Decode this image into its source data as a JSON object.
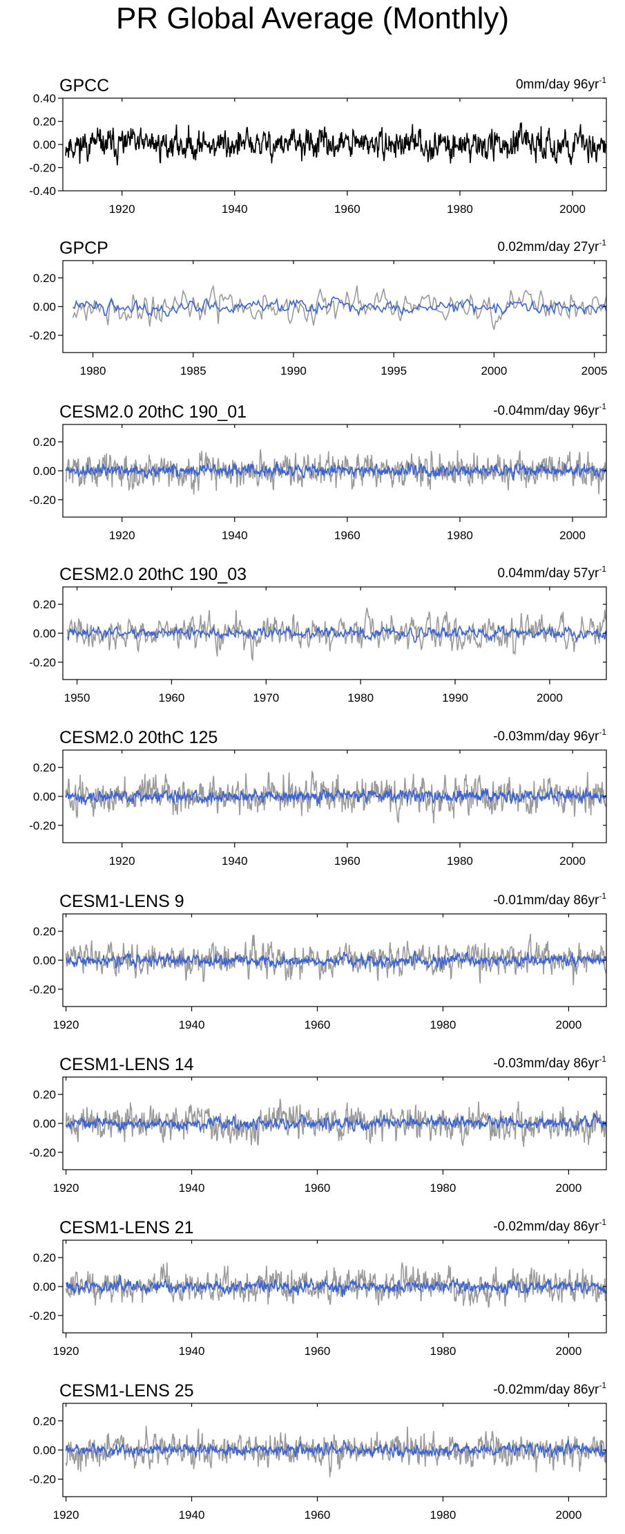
{
  "title": "PR Global Average (Monthly)",
  "colors": {
    "obs_gray": "#9a9a9a",
    "obs_black": "#000000",
    "model_blue": "#3a63d8",
    "axis": "#000000"
  },
  "chart_data": [
    {
      "type": "line",
      "name": "GPCC",
      "trend": "0mm/day 96yr",
      "trend_exp": "-1",
      "xlim": [
        1909.5,
        2006
      ],
      "ylim": [
        -0.4,
        0.4
      ],
      "yticks": [
        -0.4,
        -0.2,
        0.0,
        0.2,
        0.4
      ],
      "ytick_labels": [
        "-0.40",
        "-0.20",
        "0.00",
        "0.20",
        "0.40"
      ],
      "xticks": [
        1920,
        1940,
        1960,
        1980,
        2000
      ],
      "xtick_labels": [
        "1920",
        "1940",
        "1960",
        "1980",
        "2000"
      ],
      "series": [
        {
          "role": "obs",
          "start": 1910,
          "end": 2005.9,
          "amplitude": 0.11,
          "seed": 11
        }
      ]
    },
    {
      "type": "line",
      "name": "GPCP",
      "trend": "0.02mm/day 27yr",
      "trend_exp": "-1",
      "xlim": [
        1978.5,
        2005.6
      ],
      "ylim": [
        -0.32,
        0.32
      ],
      "yticks": [
        -0.2,
        0.0,
        0.2
      ],
      "ytick_labels": [
        "-0.20",
        "0.00",
        "0.20"
      ],
      "xticks": [
        1980,
        1985,
        1990,
        1995,
        2000,
        2005
      ],
      "xtick_labels": [
        "1980",
        "1985",
        "1990",
        "1995",
        "2000",
        "2005"
      ],
      "series": [
        {
          "role": "obs",
          "start": 1979,
          "end": 2005.9,
          "amplitude": 0.1,
          "seed": 21
        },
        {
          "role": "model",
          "start": 1979,
          "end": 2005.9,
          "amplitude": 0.045,
          "seed": 22
        }
      ]
    },
    {
      "type": "line",
      "name": "CESM2.0 20thC 190_01",
      "trend": "-0.04mm/day 96yr",
      "trend_exp": "-1",
      "xlim": [
        1909.5,
        2006
      ],
      "ylim": [
        -0.32,
        0.32
      ],
      "yticks": [
        -0.2,
        0.0,
        0.2
      ],
      "ytick_labels": [
        "-0.20",
        "0.00",
        "0.20"
      ],
      "xticks": [
        1920,
        1940,
        1960,
        1980,
        2000
      ],
      "xtick_labels": [
        "1920",
        "1940",
        "1960",
        "1980",
        "2000"
      ],
      "series": [
        {
          "role": "obs",
          "start": 1910,
          "end": 2005.9,
          "amplitude": 0.1,
          "seed": 31
        },
        {
          "role": "model",
          "start": 1910,
          "end": 2005.9,
          "amplitude": 0.035,
          "seed": 32
        }
      ]
    },
    {
      "type": "line",
      "name": "CESM2.0 20thC 190_03",
      "trend": "0.04mm/day 57yr",
      "trend_exp": "-1",
      "xlim": [
        1948.5,
        2006
      ],
      "ylim": [
        -0.32,
        0.32
      ],
      "yticks": [
        -0.2,
        0.0,
        0.2
      ],
      "ytick_labels": [
        "-0.20",
        "0.00",
        "0.20"
      ],
      "xticks": [
        1950,
        1960,
        1970,
        1980,
        1990,
        2000
      ],
      "xtick_labels": [
        "1950",
        "1960",
        "1970",
        "1980",
        "1990",
        "2000"
      ],
      "series": [
        {
          "role": "obs",
          "start": 1949,
          "end": 2005.9,
          "amplitude": 0.1,
          "seed": 41
        },
        {
          "role": "model",
          "start": 1949,
          "end": 2005.9,
          "amplitude": 0.035,
          "seed": 42
        }
      ]
    },
    {
      "type": "line",
      "name": "CESM2.0 20thC 125",
      "trend": "-0.03mm/day 96yr",
      "trend_exp": "-1",
      "xlim": [
        1909.5,
        2006
      ],
      "ylim": [
        -0.32,
        0.32
      ],
      "yticks": [
        -0.2,
        0.0,
        0.2
      ],
      "ytick_labels": [
        "-0.20",
        "0.00",
        "0.20"
      ],
      "xticks": [
        1920,
        1940,
        1960,
        1980,
        2000
      ],
      "xtick_labels": [
        "1920",
        "1940",
        "1960",
        "1980",
        "2000"
      ],
      "series": [
        {
          "role": "obs",
          "start": 1910,
          "end": 2005.9,
          "amplitude": 0.1,
          "seed": 51
        },
        {
          "role": "model",
          "start": 1910,
          "end": 2005.9,
          "amplitude": 0.035,
          "seed": 52
        }
      ]
    },
    {
      "type": "line",
      "name": "CESM1-LENS 9",
      "trend": "-0.01mm/day 86yr",
      "trend_exp": "-1",
      "xlim": [
        1919.5,
        2006
      ],
      "ylim": [
        -0.32,
        0.32
      ],
      "yticks": [
        -0.2,
        0.0,
        0.2
      ],
      "ytick_labels": [
        "-0.20",
        "0.00",
        "0.20"
      ],
      "xticks": [
        1920,
        1940,
        1960,
        1980,
        2000
      ],
      "xtick_labels": [
        "1920",
        "1940",
        "1960",
        "1980",
        "2000"
      ],
      "series": [
        {
          "role": "obs",
          "start": 1920,
          "end": 2005.9,
          "amplitude": 0.1,
          "seed": 61
        },
        {
          "role": "model",
          "start": 1920,
          "end": 2005.9,
          "amplitude": 0.035,
          "seed": 62
        }
      ]
    },
    {
      "type": "line",
      "name": "CESM1-LENS 14",
      "trend": "-0.03mm/day 86yr",
      "trend_exp": "-1",
      "xlim": [
        1919.5,
        2006
      ],
      "ylim": [
        -0.32,
        0.32
      ],
      "yticks": [
        -0.2,
        0.0,
        0.2
      ],
      "ytick_labels": [
        "-0.20",
        "0.00",
        "0.20"
      ],
      "xticks": [
        1920,
        1940,
        1960,
        1980,
        2000
      ],
      "xtick_labels": [
        "1920",
        "1940",
        "1960",
        "1980",
        "2000"
      ],
      "series": [
        {
          "role": "obs",
          "start": 1920,
          "end": 2005.9,
          "amplitude": 0.1,
          "seed": 71
        },
        {
          "role": "model",
          "start": 1920,
          "end": 2005.9,
          "amplitude": 0.035,
          "seed": 72
        }
      ]
    },
    {
      "type": "line",
      "name": "CESM1-LENS 21",
      "trend": "-0.02mm/day 86yr",
      "trend_exp": "-1",
      "xlim": [
        1919.5,
        2006
      ],
      "ylim": [
        -0.32,
        0.32
      ],
      "yticks": [
        -0.2,
        0.0,
        0.2
      ],
      "ytick_labels": [
        "-0.20",
        "0.00",
        "0.20"
      ],
      "xticks": [
        1920,
        1940,
        1960,
        1980,
        2000
      ],
      "xtick_labels": [
        "1920",
        "1940",
        "1960",
        "1980",
        "2000"
      ],
      "series": [
        {
          "role": "obs",
          "start": 1920,
          "end": 2005.9,
          "amplitude": 0.1,
          "seed": 81
        },
        {
          "role": "model",
          "start": 1920,
          "end": 2005.9,
          "amplitude": 0.035,
          "seed": 82
        }
      ]
    },
    {
      "type": "line",
      "name": "CESM1-LENS 25",
      "trend": "-0.02mm/day 86yr",
      "trend_exp": "-1",
      "xlim": [
        1919.5,
        2006
      ],
      "ylim": [
        -0.32,
        0.32
      ],
      "yticks": [
        -0.2,
        0.0,
        0.2
      ],
      "ytick_labels": [
        "-0.20",
        "0.00",
        "0.20"
      ],
      "xticks": [
        1920,
        1940,
        1960,
        1980,
        2000
      ],
      "xtick_labels": [
        "1920",
        "1940",
        "1960",
        "1980",
        "2000"
      ],
      "series": [
        {
          "role": "obs",
          "start": 1920,
          "end": 2005.9,
          "amplitude": 0.1,
          "seed": 91
        },
        {
          "role": "model",
          "start": 1920,
          "end": 2005.9,
          "amplitude": 0.035,
          "seed": 92
        }
      ]
    }
  ]
}
